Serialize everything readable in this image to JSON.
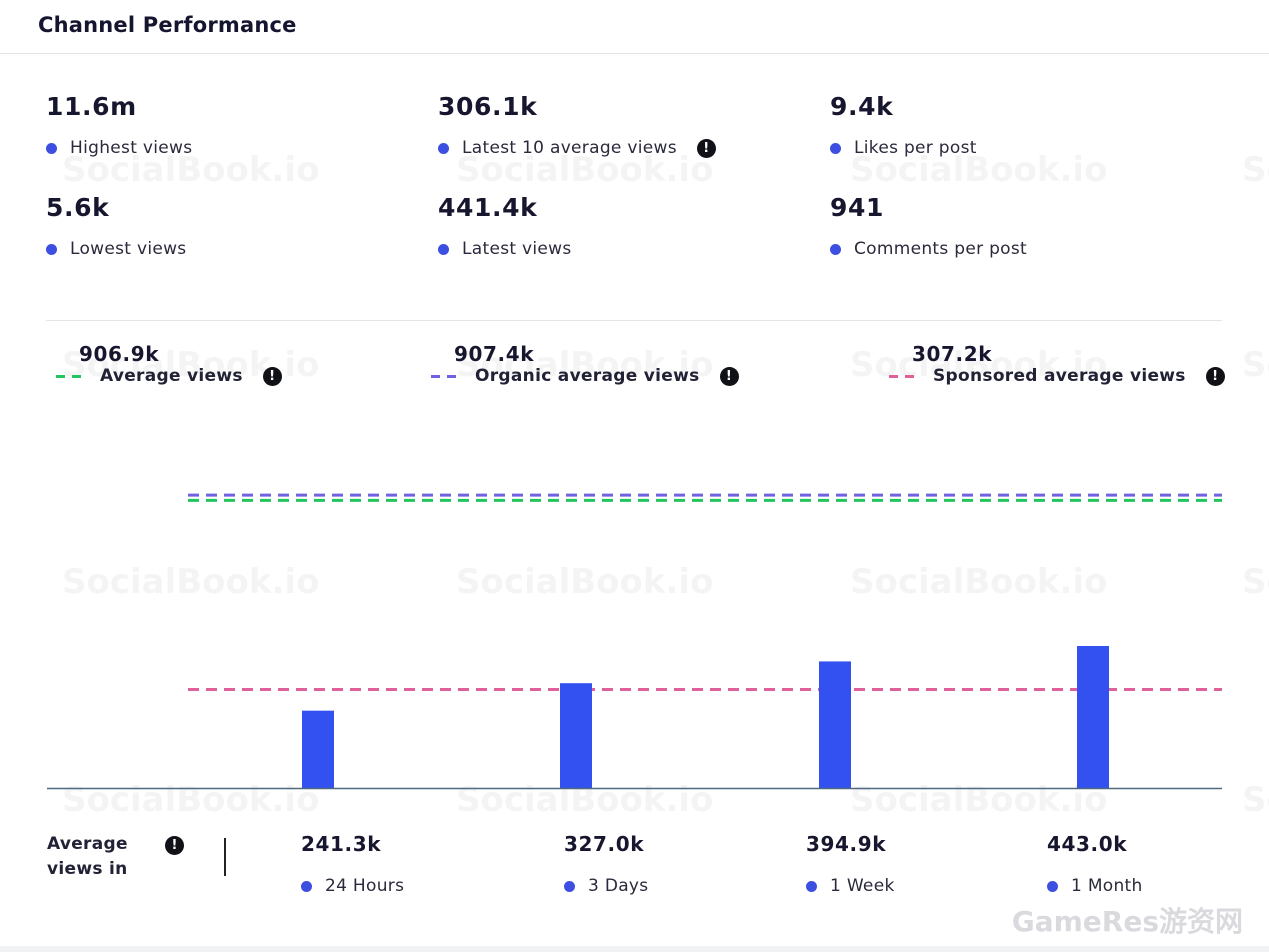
{
  "header": {
    "title": "Channel Performance"
  },
  "watermark": "SocialBook.io",
  "corner_watermark": "GameRes游资网",
  "stats": [
    {
      "value": "11.6m",
      "label": "Highest views",
      "info": false
    },
    {
      "value": "306.1k",
      "label": "Latest 10 average views",
      "info": true
    },
    {
      "value": "9.4k",
      "label": "Likes per post",
      "info": false
    },
    {
      "value": "5.6k",
      "label": "Lowest views",
      "info": false
    },
    {
      "value": "441.4k",
      "label": "Latest views",
      "info": false
    },
    {
      "value": "941",
      "label": "Comments per post",
      "info": false
    }
  ],
  "averages": [
    {
      "value": "906.9k",
      "label": "Average views",
      "color": "#22c55e"
    },
    {
      "value": "907.4k",
      "label": "Organic average views",
      "color": "#6f63e3"
    },
    {
      "value": "307.2k",
      "label": "Sponsored average views",
      "color": "#e0609a"
    }
  ],
  "info_icon": "info-icon",
  "periods_title": "Average views in",
  "periods": [
    {
      "value": "241.3k",
      "label": "24 Hours"
    },
    {
      "value": "327.0k",
      "label": "3 Days"
    },
    {
      "value": "394.9k",
      "label": "1 Week"
    },
    {
      "value": "443.0k",
      "label": "1 Month"
    }
  ],
  "chart_data": {
    "type": "bar",
    "categories": [
      "24 Hours",
      "3 Days",
      "1 Week",
      "1 Month"
    ],
    "values": [
      241.3,
      327.0,
      394.9,
      443.0
    ],
    "unit": "k",
    "reference_lines": [
      {
        "name": "Average views",
        "value": 906.9,
        "color": "#22c55e"
      },
      {
        "name": "Organic average views",
        "value": 907.4,
        "color": "#6f63e3"
      },
      {
        "name": "Sponsored average views",
        "value": 307.2,
        "color": "#e0609a"
      }
    ],
    "bar_color": "#3350f0",
    "ylim": [
      0,
      1200
    ],
    "grid": false,
    "legend": "top"
  }
}
